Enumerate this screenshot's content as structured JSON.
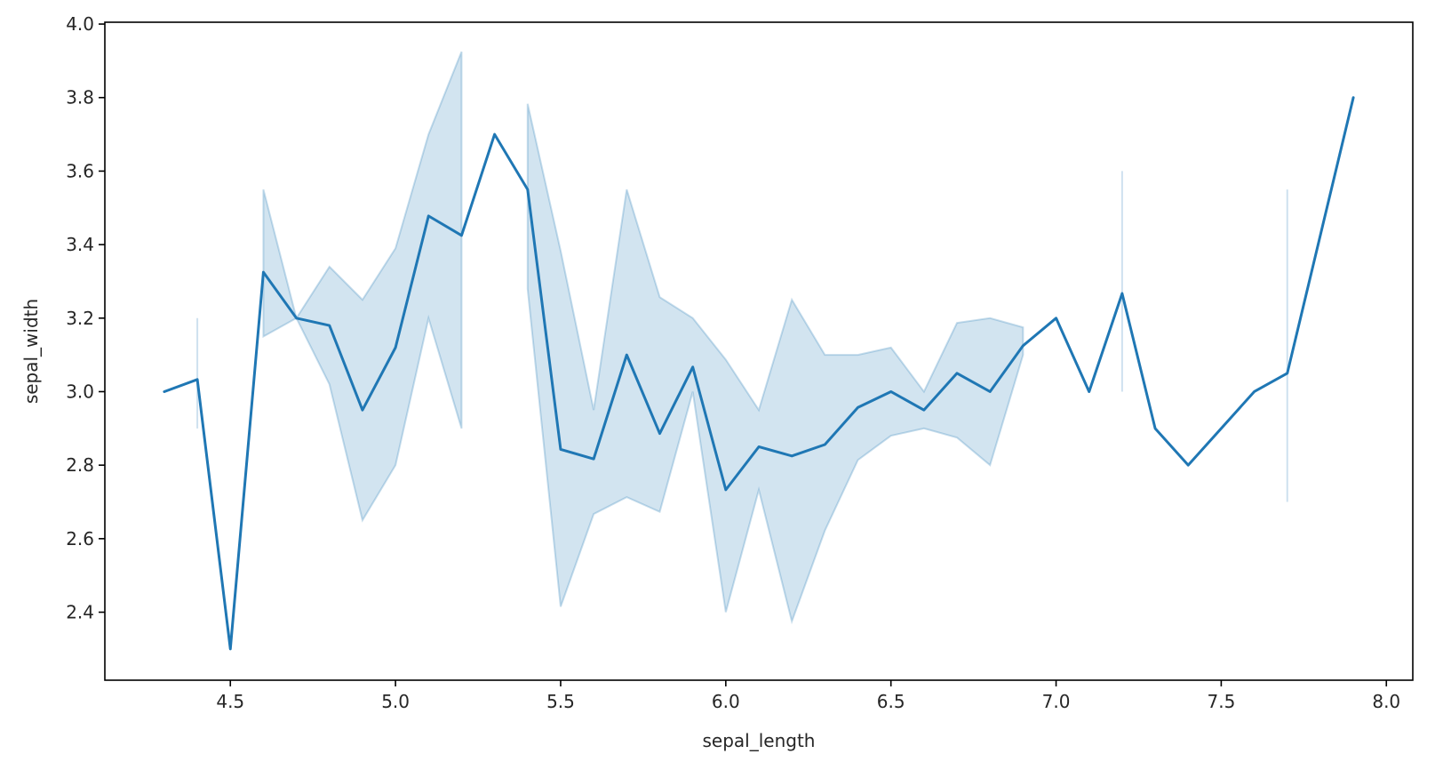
{
  "chart_data": {
    "type": "line",
    "xlabel": "sepal_length",
    "ylabel": "sepal_width",
    "xlim": [
      4.12,
      8.08
    ],
    "ylim": [
      2.215,
      4.005
    ],
    "xticks": [
      4.5,
      5.0,
      5.5,
      6.0,
      6.5,
      7.0,
      7.5,
      8.0
    ],
    "xtick_labels": [
      "4.5",
      "5.0",
      "5.5",
      "6.0",
      "6.5",
      "7.0",
      "7.5",
      "8.0"
    ],
    "yticks": [
      2.4,
      2.6,
      2.8,
      3.0,
      3.2,
      3.4,
      3.6,
      3.8,
      4.0
    ],
    "ytick_labels": [
      "2.4",
      "2.6",
      "2.8",
      "3.0",
      "3.2",
      "3.4",
      "3.6",
      "3.8",
      "4.0"
    ],
    "grid": false,
    "colors": {
      "line": "#1f77b4",
      "band": "#1f77b4"
    },
    "series": [
      {
        "x": [
          4.3,
          4.4,
          4.5,
          4.6,
          4.7,
          4.8,
          4.9,
          5.0,
          5.1,
          5.2,
          5.3,
          5.4,
          5.5,
          5.6,
          5.7,
          5.8,
          5.9,
          6.0,
          6.1,
          6.2,
          6.3,
          6.4,
          6.5,
          6.6,
          6.7,
          6.8,
          6.9,
          7.0,
          7.1,
          7.2,
          7.3,
          7.4,
          7.6,
          7.7,
          7.9
        ],
        "y": [
          3.0,
          3.033,
          2.3,
          3.325,
          3.2,
          3.18,
          2.95,
          3.12,
          3.478,
          3.425,
          3.7,
          3.55,
          2.843,
          2.817,
          3.1,
          2.886,
          3.067,
          2.733,
          2.85,
          2.825,
          2.856,
          2.957,
          3.0,
          2.95,
          3.05,
          3.0,
          3.125,
          3.2,
          3.0,
          3.267,
          2.9,
          2.8,
          3.0,
          3.05,
          3.8
        ],
        "ci_x": [
          4.4,
          4.6,
          4.7,
          4.8,
          4.9,
          5.0,
          5.1,
          5.2,
          5.4,
          5.5,
          5.6,
          5.7,
          5.8,
          5.9,
          6.0,
          6.1,
          6.2,
          6.3,
          6.4,
          6.5,
          6.6,
          6.7,
          6.8,
          6.9,
          7.2,
          7.7
        ],
        "ci_low": [
          2.9,
          3.15,
          3.2,
          3.02,
          2.65,
          2.8,
          3.2,
          2.9,
          3.28,
          2.415,
          2.667,
          2.713,
          2.673,
          3.0,
          2.4,
          2.733,
          2.375,
          2.622,
          2.814,
          2.88,
          2.9,
          2.875,
          2.8,
          3.1,
          3.0,
          2.7
        ],
        "ci_high": [
          3.2,
          3.55,
          3.2,
          3.34,
          3.25,
          3.39,
          3.7,
          3.925,
          3.783,
          3.383,
          2.95,
          3.55,
          3.257,
          3.2,
          3.087,
          2.95,
          3.25,
          3.1,
          3.1,
          3.12,
          3.0,
          3.187,
          3.2,
          3.175,
          3.6,
          3.55
        ]
      }
    ]
  }
}
